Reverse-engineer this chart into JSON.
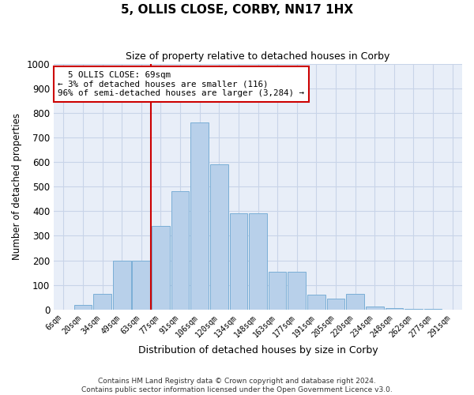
{
  "title": "5, OLLIS CLOSE, CORBY, NN17 1HX",
  "subtitle": "Size of property relative to detached houses in Corby",
  "xlabel": "Distribution of detached houses by size in Corby",
  "ylabel": "Number of detached properties",
  "footer_line1": "Contains HM Land Registry data © Crown copyright and database right 2024.",
  "footer_line2": "Contains public sector information licensed under the Open Government Licence v3.0.",
  "annotation_line1": "  5 OLLIS CLOSE: 69sqm",
  "annotation_line2": "← 3% of detached houses are smaller (116)",
  "annotation_line3": "96% of semi-detached houses are larger (3,284) →",
  "property_size": 69,
  "bar_color": "#b8d0ea",
  "bar_edge_color": "#7aaed6",
  "vline_color": "#cc0000",
  "annotation_box_color": "#cc0000",
  "grid_color": "#c8d4e8",
  "bg_color": "#e8eef8",
  "categories": [
    "6sqm",
    "20sqm",
    "34sqm",
    "49sqm",
    "63sqm",
    "77sqm",
    "91sqm",
    "106sqm",
    "120sqm",
    "134sqm",
    "148sqm",
    "163sqm",
    "177sqm",
    "191sqm",
    "205sqm",
    "220sqm",
    "234sqm",
    "248sqm",
    "262sqm",
    "277sqm",
    "291sqm"
  ],
  "values": [
    0,
    18,
    65,
    200,
    200,
    340,
    480,
    760,
    590,
    390,
    390,
    155,
    155,
    60,
    45,
    65,
    12,
    5,
    2,
    2,
    0
  ],
  "ylim": [
    0,
    1000
  ],
  "yticks": [
    0,
    100,
    200,
    300,
    400,
    500,
    600,
    700,
    800,
    900,
    1000
  ],
  "vline_pos": 4.5
}
